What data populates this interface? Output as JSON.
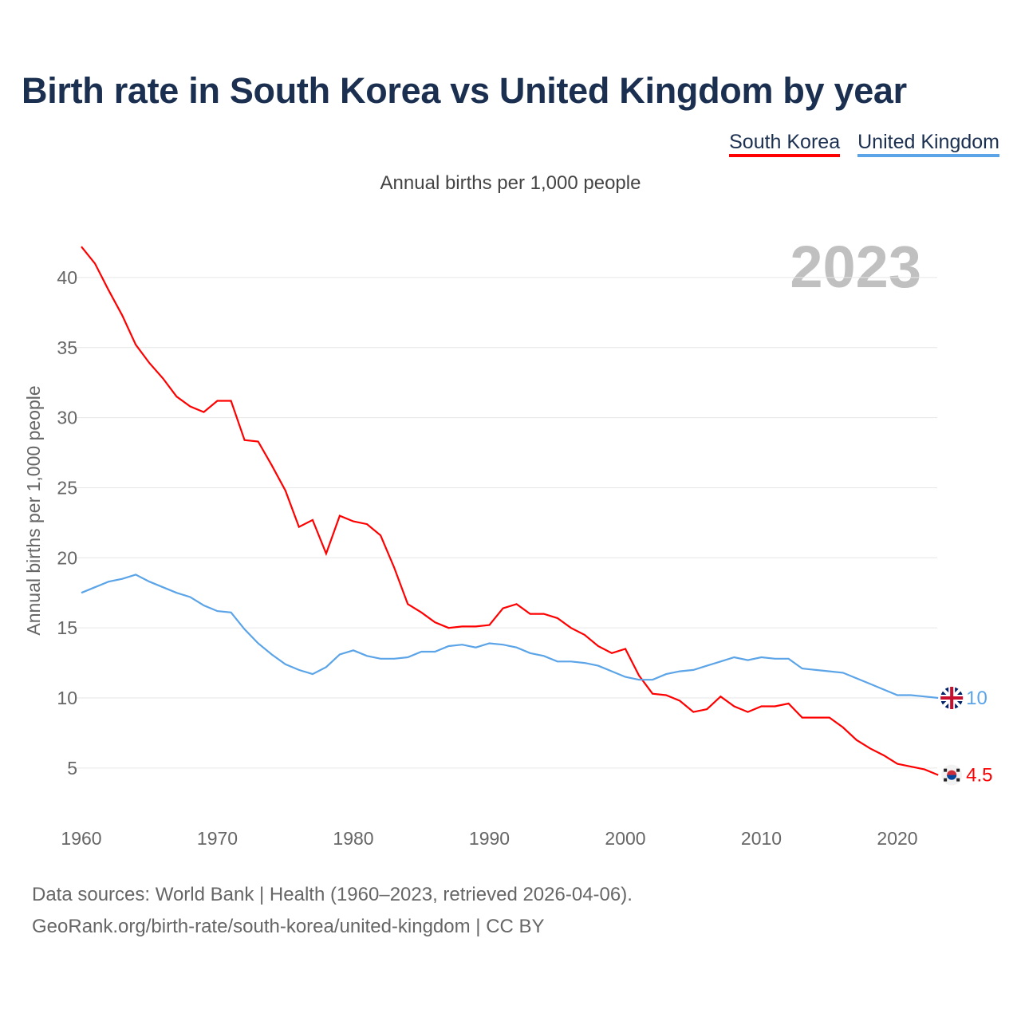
{
  "title": "Birth rate in South Korea vs United Kingdom by year",
  "legend": [
    {
      "label": "South Korea",
      "color": "#ff0000"
    },
    {
      "label": "United Kingdom",
      "color": "#5ba4e8"
    }
  ],
  "subtitle": "Annual births per 1,000 people",
  "year_label": "2023",
  "footer": {
    "line1": "Data sources: World Bank | Health (1960–2023, retrieved 2026-04-06).",
    "line2": "GeoRank.org/birth-rate/south-korea/united-kingdom | CC BY"
  },
  "chart_data": {
    "type": "line",
    "title": "Birth rate in South Korea vs United Kingdom by year",
    "ylabel": "Annual births per 1,000 people",
    "xlabel": "",
    "xlim": [
      1960,
      2023
    ],
    "ylim": [
      0,
      42
    ],
    "x_ticks": [
      1960,
      1970,
      1980,
      1990,
      2000,
      2010,
      2020
    ],
    "y_ticks": [
      5,
      10,
      15,
      20,
      25,
      30,
      35,
      40
    ],
    "grid": true,
    "legend_position": "top-right",
    "x_start": 1960,
    "series": [
      {
        "name": "South Korea",
        "color": "#ff0000",
        "end_label": "4.5",
        "values": [
          42.2,
          41.0,
          39.1,
          37.3,
          35.2,
          33.9,
          32.8,
          31.5,
          30.8,
          30.4,
          31.2,
          31.2,
          28.4,
          28.3,
          26.6,
          24.8,
          22.2,
          22.7,
          20.3,
          23.0,
          22.6,
          22.4,
          21.6,
          19.3,
          16.7,
          16.1,
          15.4,
          15.0,
          15.1,
          15.1,
          15.2,
          16.4,
          16.7,
          16.0,
          16.0,
          15.7,
          15.0,
          14.5,
          13.7,
          13.2,
          13.5,
          11.6,
          10.3,
          10.2,
          9.8,
          9.0,
          9.2,
          10.1,
          9.4,
          9.0,
          9.4,
          9.4,
          9.6,
          8.6,
          8.6,
          8.6,
          7.9,
          7.0,
          6.4,
          5.9,
          5.3,
          5.1,
          4.9,
          4.5
        ]
      },
      {
        "name": "United Kingdom",
        "color": "#5ba4e8",
        "end_label": "10",
        "values": [
          17.5,
          17.9,
          18.3,
          18.5,
          18.8,
          18.3,
          17.9,
          17.5,
          17.2,
          16.6,
          16.2,
          16.1,
          14.9,
          13.9,
          13.1,
          12.4,
          12.0,
          11.7,
          12.2,
          13.1,
          13.4,
          13.0,
          12.8,
          12.8,
          12.9,
          13.3,
          13.3,
          13.7,
          13.8,
          13.6,
          13.9,
          13.8,
          13.6,
          13.2,
          13.0,
          12.6,
          12.6,
          12.5,
          12.3,
          11.9,
          11.5,
          11.3,
          11.3,
          11.7,
          11.9,
          12.0,
          12.3,
          12.6,
          12.9,
          12.7,
          12.9,
          12.8,
          12.8,
          12.1,
          12.0,
          11.9,
          11.8,
          11.4,
          11.0,
          10.6,
          10.2,
          10.2,
          10.1,
          10.0
        ]
      }
    ]
  }
}
